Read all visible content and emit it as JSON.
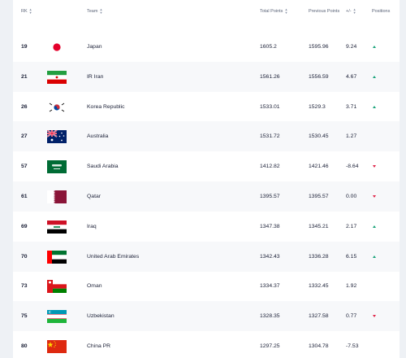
{
  "header": {
    "rk": "RK",
    "team": "Team",
    "total": "Total Points",
    "previous": "Previous Points",
    "diff": "+/-",
    "positions": "Positions"
  },
  "rows": [
    {
      "rk": "19",
      "team": "Japan",
      "flag": "japan-flag",
      "total": "1605.2",
      "previous": "1595.96",
      "diff": "9.24",
      "move": "up"
    },
    {
      "rk": "21",
      "team": "IR Iran",
      "flag": "iran-flag",
      "total": "1561.26",
      "previous": "1556.59",
      "diff": "4.67",
      "move": "up"
    },
    {
      "rk": "26",
      "team": "Korea Republic",
      "flag": "korea-flag",
      "total": "1533.01",
      "previous": "1529.3",
      "diff": "3.71",
      "move": "up"
    },
    {
      "rk": "27",
      "team": "Australia",
      "flag": "australia-flag",
      "total": "1531.72",
      "previous": "1530.45",
      "diff": "1.27",
      "move": "none"
    },
    {
      "rk": "57",
      "team": "Saudi Arabia",
      "flag": "saudi-arabia-flag",
      "total": "1412.82",
      "previous": "1421.46",
      "diff": "-8.64",
      "move": "down"
    },
    {
      "rk": "61",
      "team": "Qatar",
      "flag": "qatar-flag",
      "total": "1395.57",
      "previous": "1395.57",
      "diff": "0.00",
      "move": "down"
    },
    {
      "rk": "69",
      "team": "Iraq",
      "flag": "iraq-flag",
      "total": "1347.38",
      "previous": "1345.21",
      "diff": "2.17",
      "move": "up"
    },
    {
      "rk": "70",
      "team": "United Arab Emirates",
      "flag": "uae-flag",
      "total": "1342.43",
      "previous": "1336.28",
      "diff": "6.15",
      "move": "up"
    },
    {
      "rk": "73",
      "team": "Oman",
      "flag": "oman-flag",
      "total": "1334.37",
      "previous": "1332.45",
      "diff": "1.92",
      "move": "none"
    },
    {
      "rk": "75",
      "team": "Uzbekistan",
      "flag": "uzbekistan-flag",
      "total": "1328.35",
      "previous": "1327.58",
      "diff": "0.77",
      "move": "down"
    },
    {
      "rk": "80",
      "team": "China PR",
      "flag": "china-flag",
      "total": "1297.25",
      "previous": "1304.78",
      "diff": "-7.53",
      "move": "none"
    }
  ],
  "colors": {
    "up": "#1aa37a",
    "down": "#e0284b",
    "alt_row": "#f7f8fa"
  }
}
